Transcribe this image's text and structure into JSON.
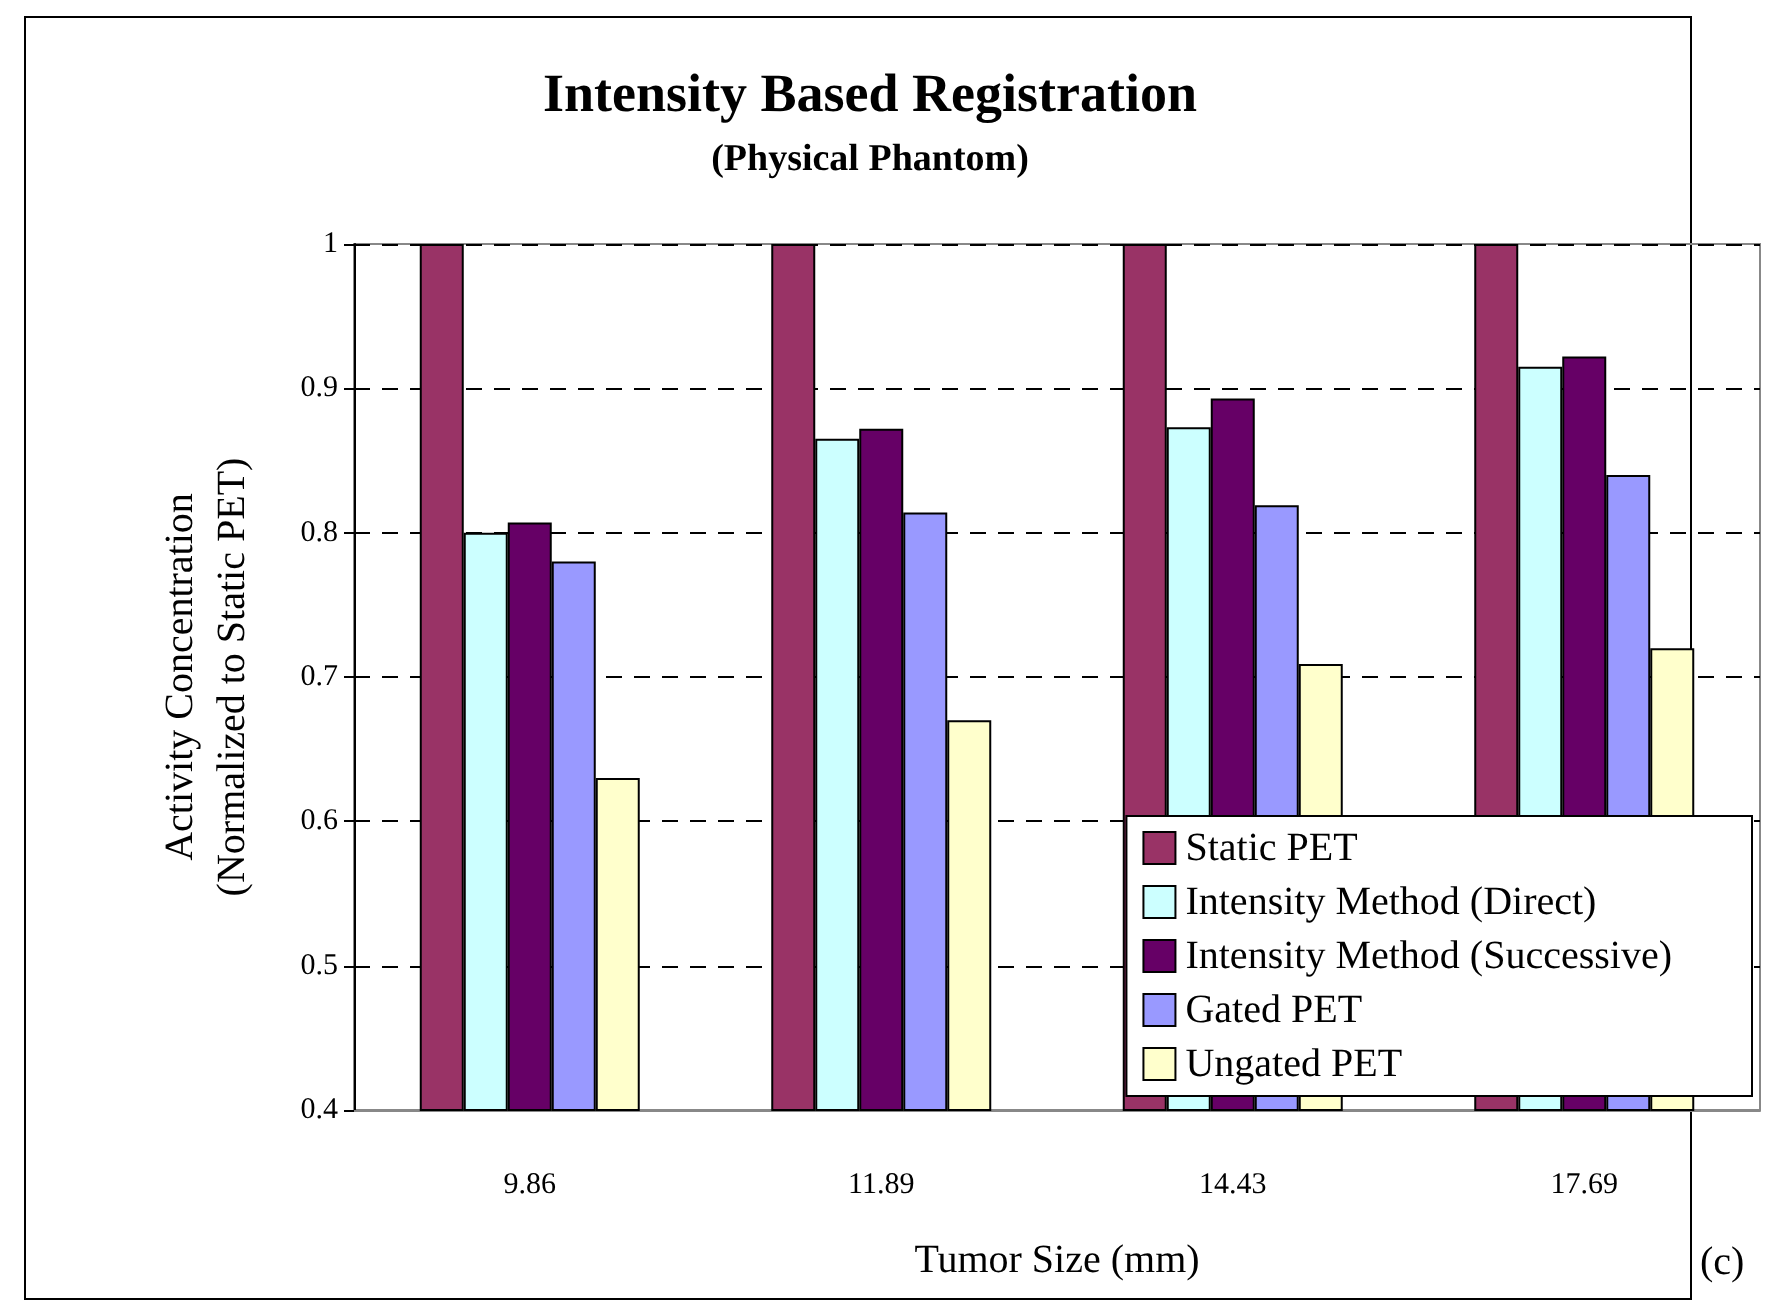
{
  "chart_data": {
    "type": "bar",
    "title": "Intensity Based Registration",
    "subtitle": "(Physical Phantom)",
    "xlabel": "Tumor Size (mm)",
    "ylabel": "Activity Concentration\n(Normalized to Static PET)",
    "annotations": [
      "(c)"
    ],
    "categories": [
      "9.86",
      "11.89",
      "14.43",
      "17.69"
    ],
    "series": [
      {
        "name": "Static PET",
        "color": "#993366",
        "values": [
          1,
          1,
          1,
          1
        ]
      },
      {
        "name": "Intensity Method (Direct)",
        "color": "#ccffff",
        "values": [
          0.8,
          0.865,
          0.873,
          0.915
        ]
      },
      {
        "name": "Intensity Method (Successive)",
        "color": "#660066",
        "values": [
          0.807,
          0.872,
          0.893,
          0.922
        ]
      },
      {
        "name": "Gated PET",
        "color": "#9999ff",
        "values": [
          0.78,
          0.814,
          0.819,
          0.84
        ]
      },
      {
        "name": "Ungated PET",
        "color": "#ffffcc",
        "values": [
          0.63,
          0.67,
          0.709,
          0.72
        ]
      }
    ],
    "ylim": [
      0.4,
      1
    ],
    "yticks": [
      0.4,
      0.5,
      0.6,
      0.7,
      0.8,
      0.9,
      1
    ],
    "grid": "y",
    "legend": "bottom right"
  }
}
